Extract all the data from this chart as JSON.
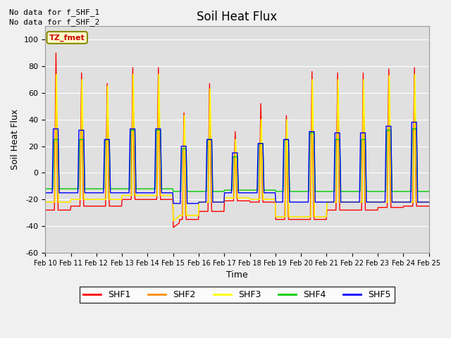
{
  "title": "Soil Heat Flux",
  "xlabel": "Time",
  "ylabel": "Soil Heat Flux",
  "ylim": [
    -60,
    110
  ],
  "xlim": [
    0,
    360
  ],
  "plot_bg": "#e0e0e0",
  "fig_bg": "#f0f0f0",
  "colors": {
    "SHF1": "#ff0000",
    "SHF2": "#ff8c00",
    "SHF3": "#ffff00",
    "SHF4": "#00cc00",
    "SHF5": "#0000ff"
  },
  "annotations": [
    "No data for f_SHF_1",
    "No data for f_SHF_2"
  ],
  "tz_label": "TZ_fmet",
  "xtick_labels": [
    "Feb 10",
    "Feb 11",
    "Feb 12",
    "Feb 13",
    "Feb 14",
    "Feb 15",
    "Feb 16",
    "Feb 17",
    "Feb 18",
    "Feb 19",
    "Feb 20",
    "Feb 21",
    "Feb 22",
    "Feb 23",
    "Feb 24",
    "Feb 25"
  ],
  "ytick_values": [
    -60,
    -40,
    -20,
    0,
    20,
    40,
    60,
    80,
    100
  ],
  "legend_entries": [
    "SHF1",
    "SHF2",
    "SHF3",
    "SHF4",
    "SHF5"
  ],
  "day_peaks_shf1": [
    90,
    75,
    67,
    79,
    79,
    45,
    67,
    31,
    52,
    43,
    76,
    75,
    75,
    78,
    79
  ],
  "day_peaks_shf2": [
    74,
    70,
    65,
    74,
    74,
    43,
    63,
    25,
    40,
    40,
    70,
    70,
    70,
    73,
    74
  ],
  "day_peaks_shf3": [
    74,
    70,
    65,
    74,
    74,
    43,
    63,
    25,
    40,
    40,
    70,
    70,
    70,
    73,
    74
  ],
  "day_peaks_shf4": [
    25,
    25,
    25,
    32,
    32,
    18,
    25,
    12,
    22,
    25,
    30,
    25,
    25,
    32,
    33
  ],
  "day_peaks_shf5": [
    33,
    32,
    25,
    33,
    33,
    20,
    25,
    15,
    22,
    25,
    31,
    30,
    30,
    35,
    38
  ],
  "night_shf1": [
    -28,
    -25,
    -25,
    -20,
    -20,
    -35,
    -29,
    -21,
    -22,
    -35,
    -35,
    -28,
    -28,
    -26,
    -25
  ],
  "night_shf2": [
    -22,
    -20,
    -20,
    -17,
    -17,
    -32,
    -22,
    -19,
    -20,
    -33,
    -33,
    -22,
    -22,
    -22,
    -22
  ],
  "night_shf3": [
    -22,
    -20,
    -20,
    -17,
    -17,
    -32,
    -22,
    -19,
    -20,
    -33,
    -33,
    -22,
    -22,
    -22,
    -22
  ],
  "night_shf4": [
    -12,
    -12,
    -12,
    -12,
    -12,
    -14,
    -14,
    -13,
    -13,
    -14,
    -14,
    -14,
    -14,
    -14,
    -14
  ],
  "night_shf5": [
    -15,
    -15,
    -15,
    -15,
    -15,
    -23,
    -22,
    -15,
    -15,
    -22,
    -22,
    -22,
    -22,
    -22,
    -22
  ]
}
